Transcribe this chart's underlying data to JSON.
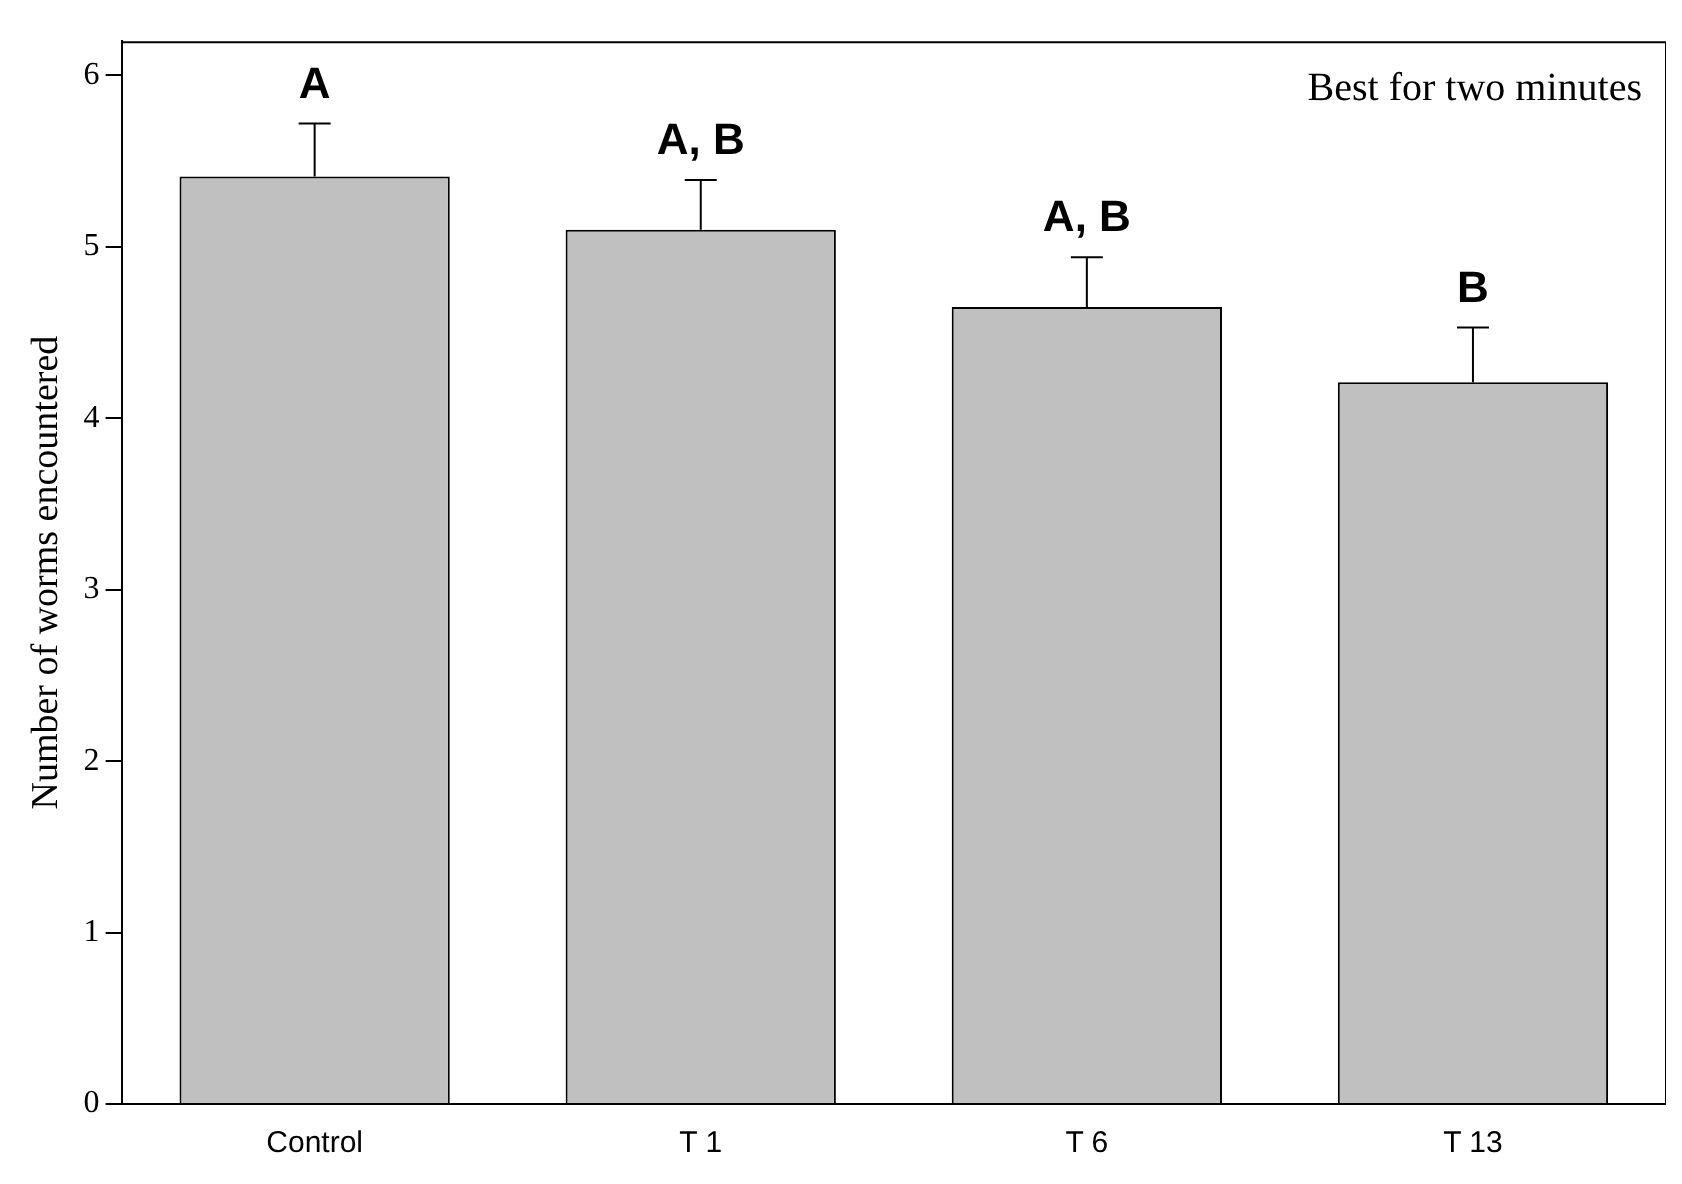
{
  "chart_data": {
    "type": "bar",
    "ylabel": "Number of worms encountered",
    "categories": [
      "Control",
      "T 1",
      "T 6",
      "T 13"
    ],
    "values": [
      5.41,
      5.1,
      4.65,
      4.21
    ],
    "errors": [
      [
        5.41,
        5.72
      ],
      [
        5.1,
        5.39
      ],
      [
        4.65,
        4.94
      ],
      [
        4.21,
        4.53
      ]
    ],
    "color": "#c0c0c0",
    "ylim": [
      0,
      6.2
    ],
    "yticks": [
      0,
      1,
      2,
      3,
      4,
      5,
      6
    ],
    "grid": false,
    "legend": false,
    "annotations": [
      "A",
      "A, B",
      "A, B",
      "B",
      "Best for two minutes"
    ]
  }
}
